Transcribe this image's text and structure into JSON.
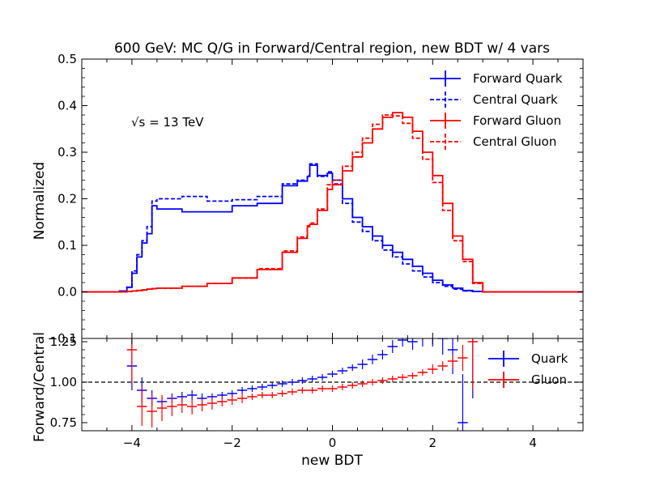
{
  "chart_data": [
    {
      "type": "line",
      "title": "600 GeV: MC Q/G in Forward/Central region, new BDT w/ 4 vars",
      "annotation": "√s = 13 TeV",
      "ylabel": "Normalized",
      "xlim": [
        -5,
        5
      ],
      "ylim": [
        -0.1,
        0.5
      ],
      "yticks": [
        "0.5",
        "0.4",
        "0.3",
        "0.2",
        "0.1",
        "0.0",
        "−0.1"
      ],
      "yticks_values": [
        0.5,
        0.4,
        0.3,
        0.2,
        0.1,
        0.0,
        -0.1
      ],
      "legend_position": "top-right",
      "x": [
        -5,
        -4.5,
        -4.25,
        -4.1,
        -4.0,
        -3.9,
        -3.8,
        -3.7,
        -3.6,
        -3.5,
        -3.0,
        -2.5,
        -2.0,
        -1.5,
        -1.0,
        -0.7,
        -0.5,
        -0.45,
        -0.3,
        -0.1,
        0.0,
        0.2,
        0.4,
        0.6,
        0.8,
        1.0,
        1.2,
        1.4,
        1.6,
        1.8,
        2.0,
        2.2,
        2.4,
        2.6,
        2.8,
        3.0,
        5
      ],
      "series": [
        {
          "name": "Forward Quark",
          "color": "#0000ff",
          "style": "solid",
          "values": [
            0.0,
            0.0,
            0.002,
            0.01,
            0.04,
            0.075,
            0.105,
            0.125,
            0.185,
            0.178,
            0.172,
            0.172,
            0.185,
            0.19,
            0.228,
            0.238,
            0.248,
            0.272,
            0.25,
            0.255,
            0.24,
            0.2,
            0.16,
            0.14,
            0.12,
            0.1,
            0.085,
            0.07,
            0.055,
            0.04,
            0.025,
            0.015,
            0.008,
            0.003,
            0.001,
            0.0,
            0.0
          ]
        },
        {
          "name": "Central Quark",
          "color": "#0000ff",
          "style": "dashed",
          "values": [
            0.0,
            0.0,
            0.002,
            0.01,
            0.045,
            0.08,
            0.11,
            0.14,
            0.195,
            0.2,
            0.205,
            0.195,
            0.198,
            0.205,
            0.232,
            0.24,
            0.25,
            0.275,
            0.248,
            0.258,
            0.232,
            0.19,
            0.15,
            0.13,
            0.11,
            0.09,
            0.075,
            0.06,
            0.045,
            0.032,
            0.02,
            0.012,
            0.006,
            0.002,
            0.001,
            0.0,
            0.0
          ]
        },
        {
          "name": "Forward Gluon",
          "color": "#ff0000",
          "style": "solid",
          "values": [
            0.0,
            0.0,
            0.0,
            0.001,
            0.002,
            0.003,
            0.004,
            0.006,
            0.007,
            0.008,
            0.012,
            0.018,
            0.03,
            0.048,
            0.085,
            0.115,
            0.14,
            0.145,
            0.175,
            0.22,
            0.23,
            0.26,
            0.29,
            0.32,
            0.35,
            0.375,
            0.385,
            0.375,
            0.345,
            0.3,
            0.25,
            0.19,
            0.12,
            0.07,
            0.02,
            0.0,
            0.0
          ]
        },
        {
          "name": "Central Gluon",
          "color": "#ff0000",
          "style": "dashed",
          "values": [
            0.0,
            0.0,
            0.0,
            0.001,
            0.002,
            0.003,
            0.004,
            0.006,
            0.007,
            0.008,
            0.012,
            0.018,
            0.03,
            0.05,
            0.088,
            0.118,
            0.142,
            0.148,
            0.178,
            0.23,
            0.24,
            0.27,
            0.3,
            0.33,
            0.36,
            0.38,
            0.378,
            0.362,
            0.33,
            0.285,
            0.235,
            0.175,
            0.11,
            0.065,
            0.018,
            0.0,
            0.0
          ]
        }
      ]
    },
    {
      "type": "scatter",
      "xlabel": "new BDT",
      "ylabel": "Forward/Central",
      "xlim": [
        -5,
        5
      ],
      "ylim": [
        0.7,
        1.27
      ],
      "yticks": [
        "1.25",
        "1.00",
        "0.75"
      ],
      "yticks_values": [
        1.25,
        1.0,
        0.75
      ],
      "xticks": [
        "−4",
        "−2",
        "0",
        "2",
        "4"
      ],
      "xticks_values": [
        -4,
        -2,
        0,
        2,
        4
      ],
      "reference_line": 1.0,
      "legend_position": "top-right",
      "x": [
        -4.0,
        -3.8,
        -3.6,
        -3.4,
        -3.2,
        -3.0,
        -2.8,
        -2.6,
        -2.4,
        -2.2,
        -2.0,
        -1.8,
        -1.6,
        -1.4,
        -1.2,
        -1.0,
        -0.8,
        -0.6,
        -0.4,
        -0.2,
        0.0,
        0.2,
        0.4,
        0.6,
        0.8,
        1.0,
        1.2,
        1.4,
        1.6,
        1.8,
        2.0,
        2.2,
        2.4,
        2.6,
        2.8
      ],
      "series": [
        {
          "name": "Quark",
          "color": "#0000ff",
          "values": [
            1.1,
            0.95,
            0.9,
            0.88,
            0.9,
            0.91,
            0.92,
            0.9,
            0.91,
            0.92,
            0.93,
            0.95,
            0.96,
            0.97,
            0.98,
            0.99,
            1.0,
            1.01,
            1.02,
            1.03,
            1.05,
            1.07,
            1.09,
            1.11,
            1.14,
            1.17,
            1.22,
            1.26,
            1.25,
            1.28,
            1.3,
            1.27,
            1.2,
            0.75,
            1.3
          ],
          "errors": [
            0.15,
            0.08,
            0.05,
            0.03,
            0.03,
            0.03,
            0.03,
            0.03,
            0.02,
            0.02,
            0.02,
            0.02,
            0.02,
            0.02,
            0.02,
            0.02,
            0.02,
            0.02,
            0.02,
            0.02,
            0.02,
            0.02,
            0.02,
            0.03,
            0.03,
            0.03,
            0.04,
            0.04,
            0.05,
            0.06,
            0.08,
            0.1,
            0.15,
            0.3,
            0.4
          ]
        },
        {
          "name": "Gluon",
          "color": "#ff0000",
          "values": [
            1.2,
            0.85,
            0.82,
            0.84,
            0.85,
            0.86,
            0.85,
            0.86,
            0.87,
            0.88,
            0.89,
            0.9,
            0.91,
            0.92,
            0.92,
            0.93,
            0.94,
            0.95,
            0.95,
            0.96,
            0.96,
            0.97,
            0.98,
            0.99,
            1.0,
            1.01,
            1.02,
            1.03,
            1.04,
            1.06,
            1.08,
            1.1,
            1.13,
            1.15,
            1.25
          ],
          "errors": [
            0.2,
            0.12,
            0.1,
            0.08,
            0.06,
            0.05,
            0.05,
            0.04,
            0.04,
            0.03,
            0.03,
            0.03,
            0.02,
            0.02,
            0.02,
            0.02,
            0.02,
            0.02,
            0.02,
            0.02,
            0.02,
            0.02,
            0.02,
            0.02,
            0.02,
            0.02,
            0.02,
            0.02,
            0.02,
            0.02,
            0.03,
            0.03,
            0.04,
            0.08,
            0.3
          ]
        }
      ]
    }
  ]
}
